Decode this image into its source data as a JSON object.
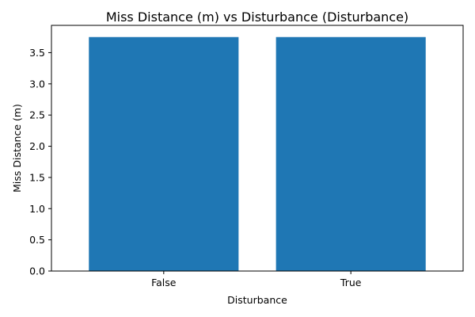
{
  "chart_data": {
    "type": "bar",
    "title": "Miss Distance (m) vs Disturbance (Disturbance)",
    "xlabel": "Disturbance",
    "ylabel": "Miss Distance (m)",
    "categories": [
      "False",
      "True"
    ],
    "values": [
      3.75,
      3.75
    ],
    "ylim": [
      0,
      3.75
    ],
    "yticks": [
      0.0,
      0.5,
      1.0,
      1.5,
      2.0,
      2.5,
      3.0,
      3.5
    ],
    "ytick_labels": [
      "0.0",
      "0.5",
      "1.0",
      "1.5",
      "2.0",
      "2.5",
      "3.0",
      "3.5"
    ],
    "bar_color": "#1f77b4",
    "grid": false,
    "legend": "none"
  }
}
